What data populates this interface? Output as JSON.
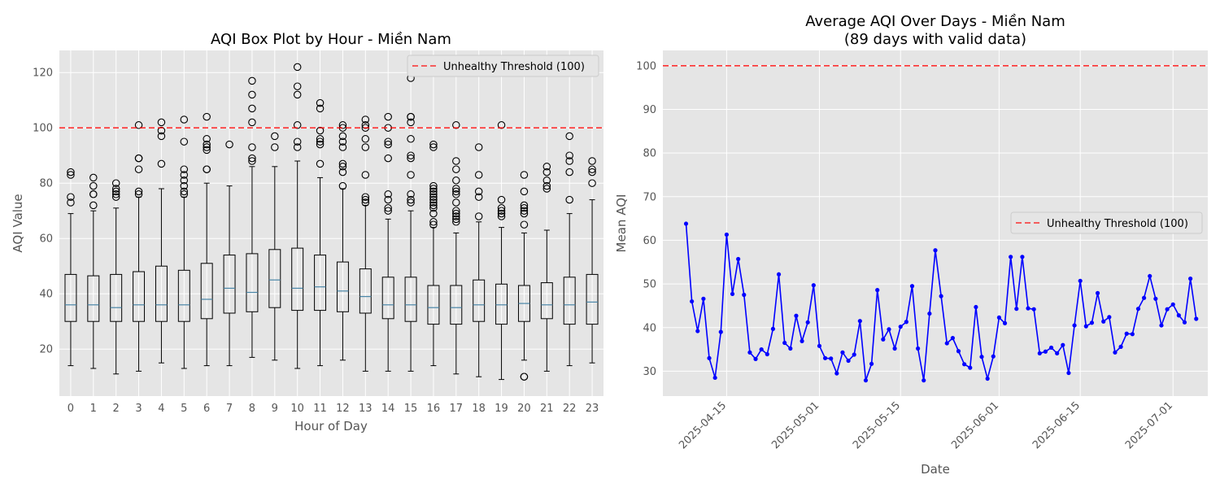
{
  "chart_data": [
    {
      "type": "box",
      "title": "AQI Box Plot by Hour - Miền Nam",
      "xlabel": "Hour of Day",
      "ylabel": "AQI Value",
      "ylim": [
        3,
        128
      ],
      "yticks": [
        20,
        40,
        60,
        80,
        100,
        120
      ],
      "grid": true,
      "legend": {
        "position": "top-right",
        "entries": [
          "Unhealthy Threshold (100)"
        ]
      },
      "threshold": {
        "value": 100,
        "label": "Unhealthy Threshold (100)",
        "color": "#ff0000",
        "style": "dashed"
      },
      "categories": [
        "0",
        "1",
        "2",
        "3",
        "4",
        "5",
        "6",
        "7",
        "8",
        "9",
        "10",
        "11",
        "12",
        "13",
        "14",
        "15",
        "16",
        "17",
        "18",
        "19",
        "20",
        "21",
        "22",
        "23"
      ],
      "boxes": [
        {
          "min": 14,
          "q1": 30,
          "median": 36,
          "q3": 47,
          "max": 69,
          "outliers": [
            73,
            75,
            83,
            84
          ]
        },
        {
          "min": 13,
          "q1": 30,
          "median": 36,
          "q3": 46.5,
          "max": 70,
          "outliers": [
            72,
            76,
            76,
            79,
            82
          ]
        },
        {
          "min": 11,
          "q1": 30,
          "median": 35,
          "q3": 47,
          "max": 71,
          "outliers": [
            75,
            76,
            77,
            78,
            80
          ]
        },
        {
          "min": 12,
          "q1": 30,
          "median": 36,
          "q3": 48,
          "max": 75,
          "outliers": [
            76,
            77,
            85,
            89,
            89,
            101
          ]
        },
        {
          "min": 15,
          "q1": 30,
          "median": 36,
          "q3": 50,
          "max": 78,
          "outliers": [
            87,
            97,
            99,
            102
          ]
        },
        {
          "min": 13,
          "q1": 30,
          "median": 36,
          "q3": 48.5,
          "max": 75,
          "outliers": [
            76,
            77,
            79,
            81,
            83,
            85,
            95,
            103
          ]
        },
        {
          "min": 14,
          "q1": 31,
          "median": 38,
          "q3": 51,
          "max": 80,
          "outliers": [
            85,
            85,
            92,
            93,
            94,
            96,
            104
          ]
        },
        {
          "min": 14,
          "q1": 33,
          "median": 42,
          "q3": 54,
          "max": 79,
          "outliers": [
            94
          ]
        },
        {
          "min": 17,
          "q1": 33.5,
          "median": 40.5,
          "q3": 54.5,
          "max": 86,
          "outliers": [
            88,
            89,
            93,
            102,
            107,
            112,
            117
          ]
        },
        {
          "min": 16,
          "q1": 35,
          "median": 45,
          "q3": 56,
          "max": 86,
          "outliers": [
            93,
            97
          ]
        },
        {
          "min": 13,
          "q1": 34,
          "median": 42,
          "q3": 56.5,
          "max": 88,
          "outliers": [
            93,
            95,
            101,
            112,
            115,
            122
          ]
        },
        {
          "min": 14,
          "q1": 34,
          "median": 42.5,
          "q3": 54,
          "max": 82,
          "outliers": [
            87,
            94,
            95,
            96,
            99,
            107,
            109
          ]
        },
        {
          "min": 16,
          "q1": 33.5,
          "median": 41,
          "q3": 51.5,
          "max": 78,
          "outliers": [
            79,
            84,
            86,
            87,
            93,
            95,
            97,
            100,
            101
          ]
        },
        {
          "min": 12,
          "q1": 33,
          "median": 39,
          "q3": 49,
          "max": 72,
          "outliers": [
            73,
            74,
            75,
            83,
            93,
            96,
            100,
            101,
            103
          ]
        },
        {
          "min": 12,
          "q1": 31,
          "median": 36,
          "q3": 46,
          "max": 67,
          "outliers": [
            70,
            71,
            74,
            76,
            89,
            94,
            95,
            100,
            104
          ]
        },
        {
          "min": 12,
          "q1": 30,
          "median": 36,
          "q3": 46,
          "max": 70,
          "outliers": [
            73,
            74,
            76,
            83,
            89,
            90,
            96,
            102,
            104,
            104,
            118
          ]
        },
        {
          "min": 14,
          "q1": 29,
          "median": 35,
          "q3": 43,
          "max": 64,
          "outliers": [
            65,
            66,
            69,
            71,
            72,
            73,
            74,
            75,
            76,
            77,
            78,
            79,
            93,
            94
          ]
        },
        {
          "min": 11,
          "q1": 29,
          "median": 35,
          "q3": 43,
          "max": 62,
          "outliers": [
            66,
            67,
            68,
            69,
            70,
            73,
            76,
            77,
            78,
            81,
            85,
            88,
            101
          ]
        },
        {
          "min": 10,
          "q1": 30,
          "median": 36,
          "q3": 45,
          "max": 66,
          "outliers": [
            68,
            75,
            77,
            83,
            93
          ]
        },
        {
          "min": 9,
          "q1": 29,
          "median": 36,
          "q3": 43.5,
          "max": 64,
          "outliers": [
            68,
            69,
            70,
            71,
            74,
            101
          ]
        },
        {
          "min": 16,
          "q1": 30,
          "median": 36.5,
          "q3": 43,
          "max": 62,
          "outliers": [
            10,
            10,
            65,
            69,
            70,
            71,
            72,
            77,
            83
          ]
        },
        {
          "min": 12,
          "q1": 31,
          "median": 36,
          "q3": 44,
          "max": 63,
          "outliers": [
            78,
            79,
            81,
            84,
            86
          ]
        },
        {
          "min": 14,
          "q1": 29,
          "median": 36,
          "q3": 46,
          "max": 69,
          "outliers": [
            74,
            84,
            88,
            90,
            97
          ]
        },
        {
          "min": 15,
          "q1": 29,
          "median": 37,
          "q3": 47,
          "max": 74,
          "outliers": [
            80,
            84,
            85,
            88
          ]
        }
      ]
    },
    {
      "type": "line",
      "title": "Average AQI Over Days - Miền Nam",
      "subtitle": "(89 days with valid data)",
      "xlabel": "Date",
      "ylabel": "Mean AQI",
      "ylim": [
        24.3,
        103.5
      ],
      "yticks": [
        30,
        40,
        50,
        60,
        70,
        80,
        90,
        100
      ],
      "xticks": [
        "2025-04-15",
        "2025-05-01",
        "2025-05-15",
        "2025-06-01",
        "2025-06-15",
        "2025-07-01"
      ],
      "xlim": [
        "2025-04-04",
        "2025-07-07"
      ],
      "x_start": "2025-04-08",
      "grid": true,
      "legend": {
        "position": "center-right",
        "entries": [
          "Unhealthy Threshold (100)"
        ]
      },
      "threshold": {
        "value": 100,
        "label": "Unhealthy Threshold (100)",
        "color": "#ff0000",
        "style": "dashed"
      },
      "series": [
        {
          "color": "#0000ff",
          "marker": "circle",
          "values": [
            63.8,
            46,
            39.2,
            46.6,
            33,
            28.5,
            39,
            61.3,
            47.7,
            55.7,
            47.5,
            34.3,
            32.8,
            35,
            33.9,
            39.7,
            52.2,
            36.5,
            35.2,
            42.7,
            36.9,
            41.2,
            49.7,
            35.8,
            33,
            32.9,
            29.5,
            34.3,
            32.4,
            33.8,
            41.5,
            27.9,
            31.7,
            48.6,
            37.3,
            39.6,
            35.2,
            40.2,
            41.3,
            49.5,
            35.2,
            27.9,
            43.2,
            57.7,
            47.2,
            36.4,
            37.6,
            34.6,
            31.6,
            30.8,
            44.7,
            33.3,
            28.3,
            33.4,
            42.3,
            41,
            56.2,
            44.3,
            56.2,
            44.4,
            44.2,
            34.1,
            34.5,
            35.4,
            34.1,
            36,
            29.6,
            40.5,
            50.7,
            40.3,
            41.1,
            47.9,
            41.4,
            42.4,
            34.3,
            35.6,
            38.6,
            38.5,
            44.3,
            46.8,
            51.8,
            46.6,
            40.5,
            44.2,
            45.3,
            42.8,
            41.2,
            51.2,
            42
          ]
        }
      ]
    }
  ]
}
